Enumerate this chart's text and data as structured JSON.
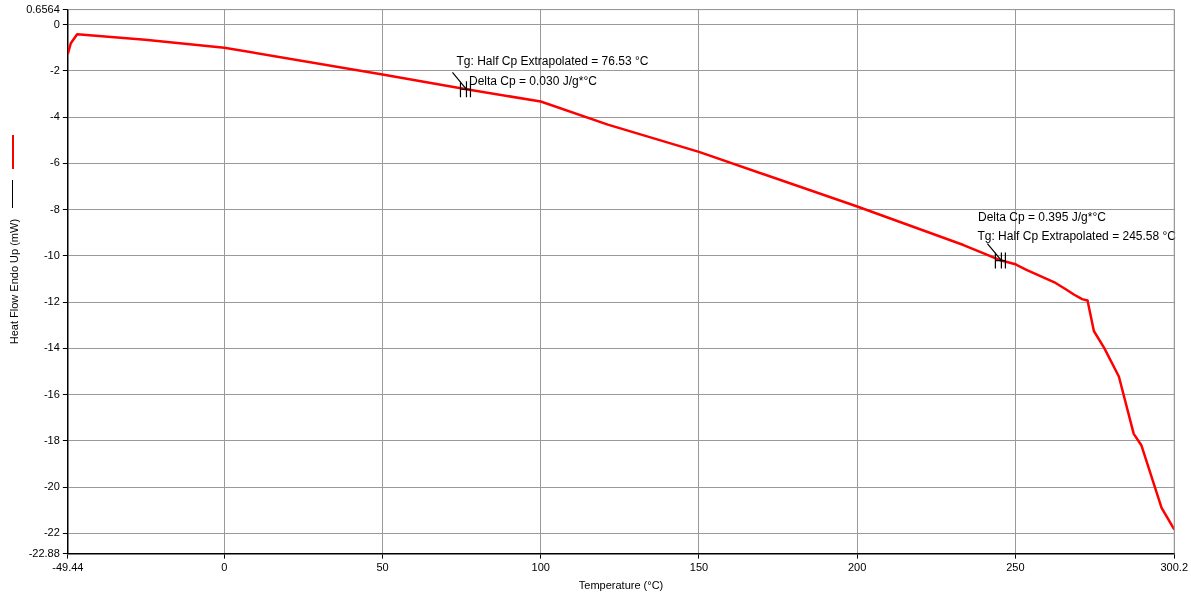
{
  "chart_data": {
    "type": "line",
    "xlabel": "Temperature (°C)",
    "ylabel": "Heat Flow Endo Up (mW)",
    "xlim": [
      -49.44,
      300.2
    ],
    "xticks": [
      -49.44,
      0,
      50,
      100,
      150,
      200,
      250,
      300.2
    ],
    "ylim": [
      -22.88,
      0.6564
    ],
    "yticks": [
      0.6564,
      0,
      -2,
      -4,
      -6,
      -8,
      -10,
      -12,
      -14,
      -16,
      -18,
      -20,
      -22,
      -22.88
    ],
    "grid": true,
    "marker": "none",
    "line_style": "solid",
    "series": [
      {
        "color": "#ff0000",
        "x": [
          -49.4,
          -48.5,
          -46.5,
          -25,
          0,
          50,
          76.5,
          100,
          121.2,
          150,
          199.8,
          233.6,
          245.3,
          250,
          253.5,
          262.7,
          265.8,
          268.6,
          271.1,
          272.8,
          274.8,
          278.1,
          282.7,
          287.4,
          289.8,
          296.2,
          300.1
        ],
        "values": [
          -1.24,
          -0.8,
          -0.41,
          -0.65,
          -0.99,
          -2.15,
          -2.79,
          -3.32,
          -4.32,
          -5.5,
          -7.85,
          -9.53,
          -10.19,
          -10.36,
          -10.6,
          -11.17,
          -11.43,
          -11.68,
          -11.87,
          -11.93,
          -13.25,
          -13.99,
          -15.22,
          -17.7,
          -18.19,
          -20.9,
          -21.81
        ]
      }
    ],
    "annotations": [
      {
        "text": "Tg: Half Cp Extrapolated = 76.53 °C",
        "x": 76.53,
        "y": -2.79
      },
      "Delta Cp = 0.030 J/g*°C",
      "Delta Cp = 0.395 J/g*°C",
      {
        "text": "Tg: Half Cp Extrapolated = 245.58 °C",
        "x": 245.58,
        "y": -10.2
      }
    ]
  }
}
